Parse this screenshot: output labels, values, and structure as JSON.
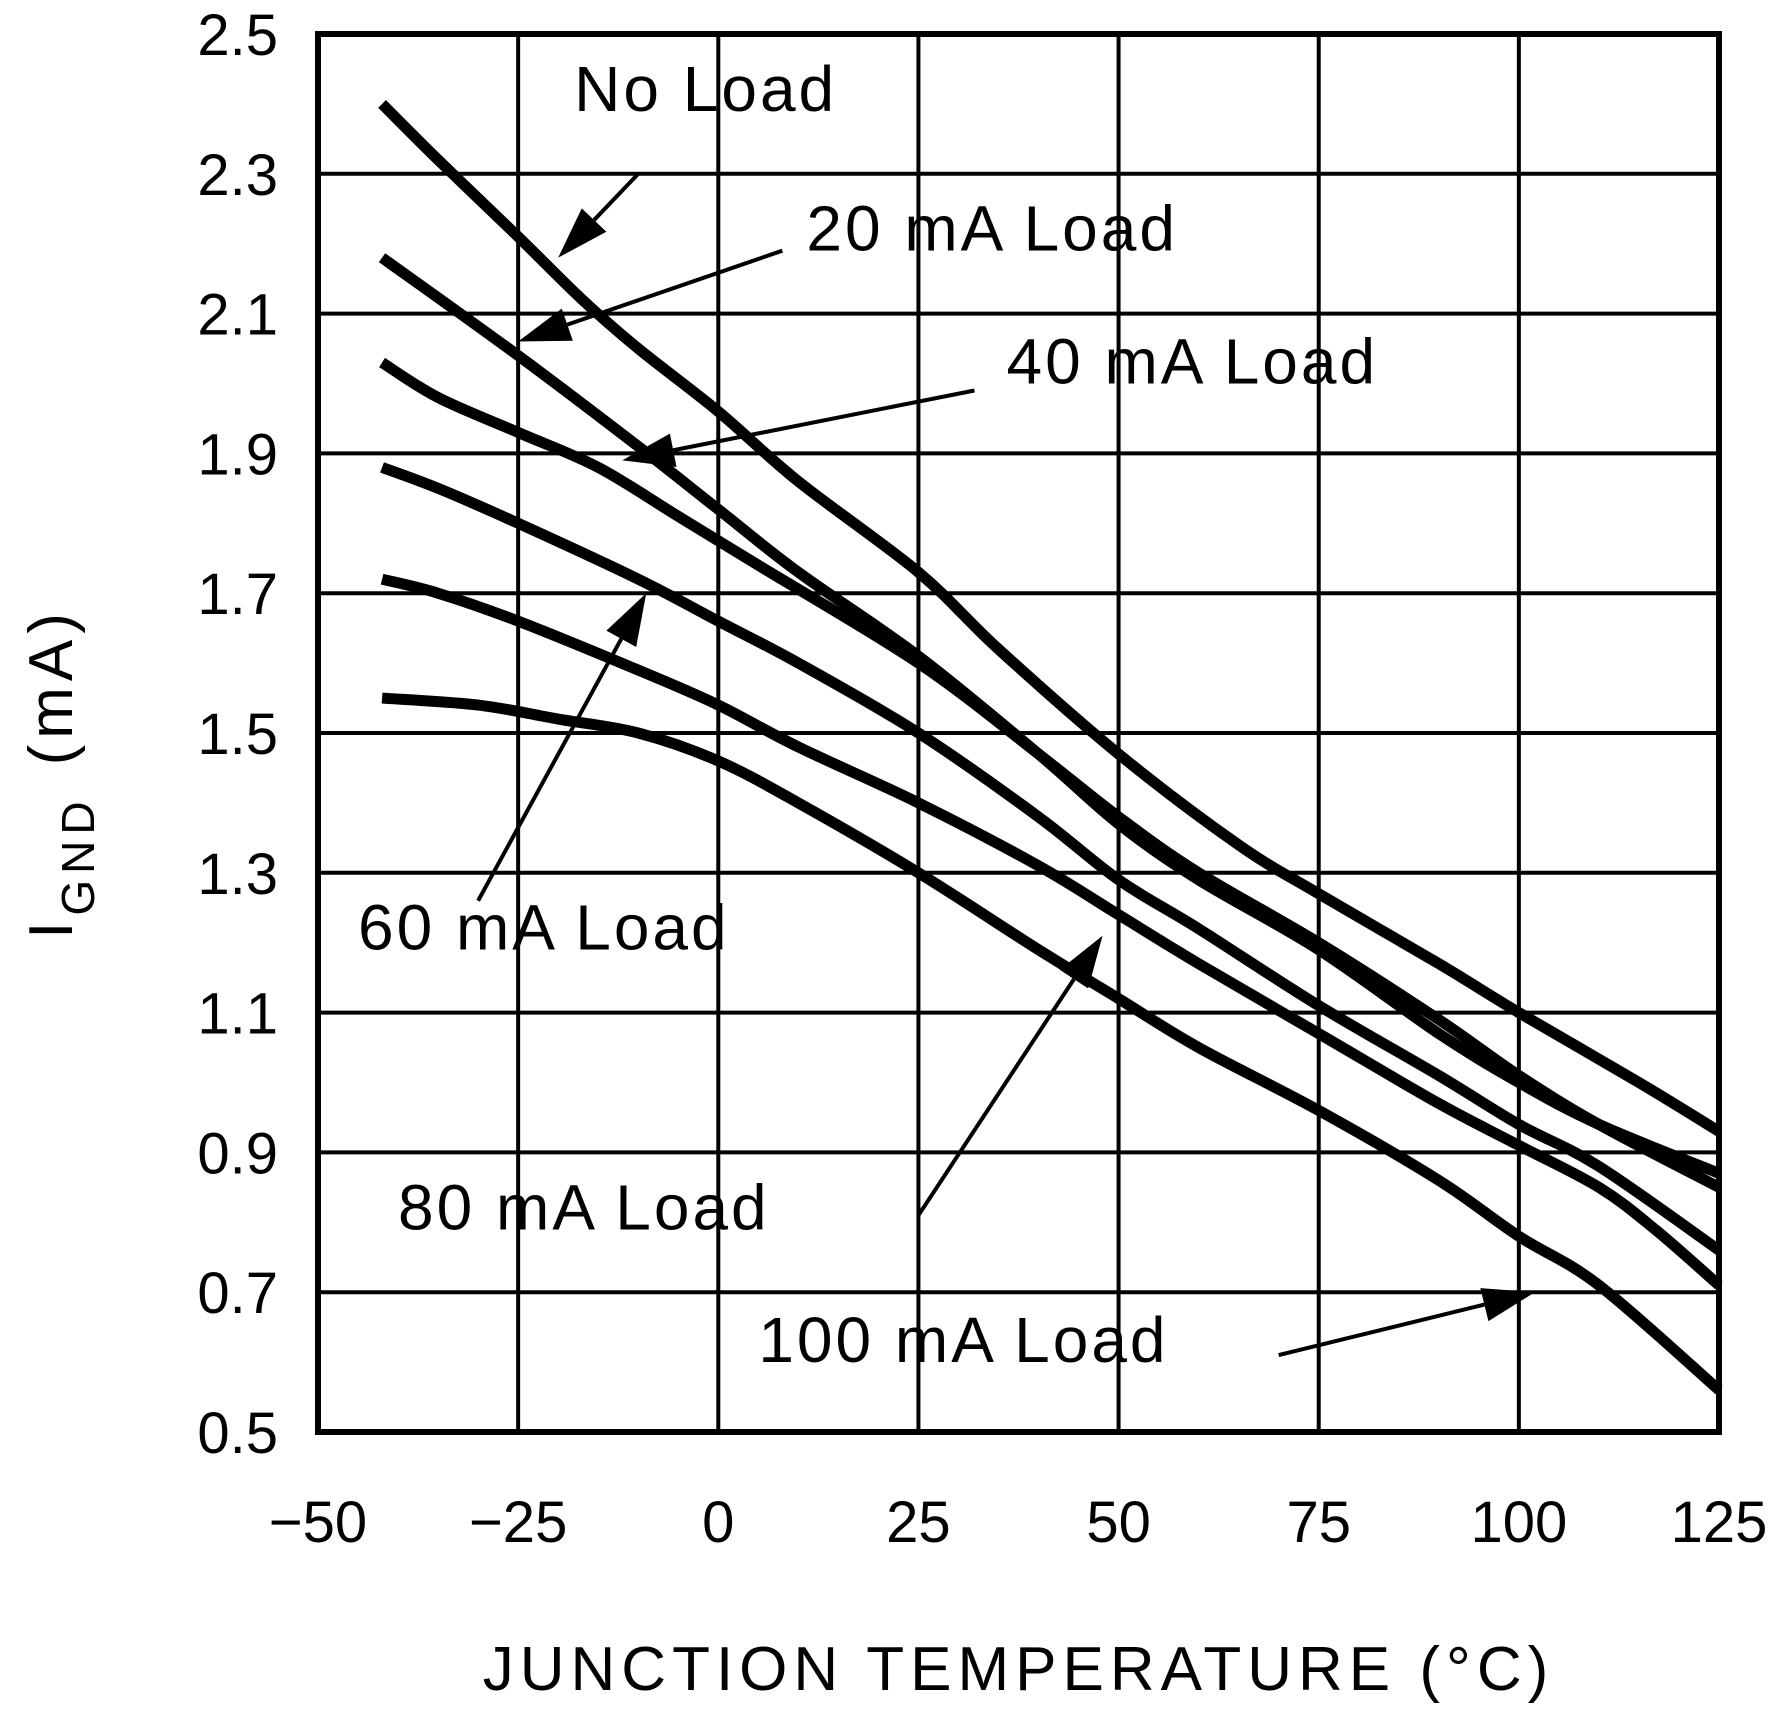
{
  "chart_data": {
    "type": "line",
    "title": "",
    "xlabel": "JUNCTION TEMPERATURE (°C)",
    "ylabel_main": "I",
    "ylabel_sub": "GND",
    "ylabel_unit": "(mA)",
    "xlim": [
      -50,
      125
    ],
    "ylim": [
      0.5,
      2.5
    ],
    "xticks": [
      -50,
      -25,
      0,
      25,
      50,
      75,
      100,
      125
    ],
    "xtick_labels": [
      "−50",
      "−25",
      "0",
      "25",
      "50",
      "75",
      "100",
      "125"
    ],
    "yticks": [
      0.5,
      0.7,
      0.9,
      1.1,
      1.3,
      1.5,
      1.7,
      1.9,
      2.1,
      2.3,
      2.5
    ],
    "ytick_labels": [
      "0.5",
      "0.7",
      "0.9",
      "1.1",
      "1.3",
      "1.5",
      "1.7",
      "1.9",
      "2.1",
      "2.3",
      "2.5"
    ],
    "grid": true,
    "line_color": "#000000",
    "series": [
      {
        "name": "No Load",
        "x": [
          -42,
          -35,
          -25,
          -17,
          -10,
          0,
          10,
          25,
          35,
          50,
          65,
          75,
          90,
          100,
          115,
          125
        ],
        "y": [
          2.4,
          2.32,
          2.21,
          2.12,
          2.05,
          1.96,
          1.86,
          1.73,
          1.62,
          1.47,
          1.34,
          1.27,
          1.17,
          1.1,
          1.0,
          0.93
        ]
      },
      {
        "name": "20 mA Load",
        "x": [
          -42,
          -25,
          -10,
          0,
          10,
          25,
          40,
          50,
          60,
          75,
          90,
          100,
          110,
          125
        ],
        "y": [
          2.18,
          2.04,
          1.91,
          1.82,
          1.73,
          1.61,
          1.47,
          1.37,
          1.29,
          1.19,
          1.07,
          1.0,
          0.94,
          0.87
        ]
      },
      {
        "name": "40 mA Load",
        "x": [
          -42,
          -35,
          -25,
          -15,
          -5,
          5,
          25,
          40,
          50,
          60,
          75,
          90,
          100,
          110,
          125
        ],
        "y": [
          2.03,
          1.98,
          1.93,
          1.88,
          1.81,
          1.74,
          1.6,
          1.47,
          1.38,
          1.3,
          1.2,
          1.09,
          1.01,
          0.94,
          0.85
        ]
      },
      {
        "name": "60 mA Load",
        "x": [
          -42,
          -35,
          -25,
          -10,
          0,
          10,
          25,
          40,
          50,
          60,
          75,
          90,
          100,
          110,
          125
        ],
        "y": [
          1.88,
          1.85,
          1.8,
          1.72,
          1.66,
          1.6,
          1.5,
          1.38,
          1.29,
          1.22,
          1.11,
          1.01,
          0.94,
          0.88,
          0.76
        ]
      },
      {
        "name": "80 mA Load",
        "x": [
          -42,
          -35,
          -25,
          -10,
          0,
          10,
          25,
          40,
          50,
          60,
          75,
          90,
          100,
          110,
          117,
          125
        ],
        "y": [
          1.72,
          1.7,
          1.66,
          1.59,
          1.54,
          1.48,
          1.4,
          1.31,
          1.24,
          1.17,
          1.07,
          0.97,
          0.91,
          0.85,
          0.79,
          0.71
        ]
      },
      {
        "name": "100 mA Load",
        "x": [
          -42,
          -30,
          -20,
          -10,
          0,
          10,
          25,
          40,
          50,
          60,
          75,
          90,
          100,
          110,
          125
        ],
        "y": [
          1.55,
          1.54,
          1.52,
          1.5,
          1.46,
          1.4,
          1.3,
          1.19,
          1.12,
          1.05,
          0.96,
          0.86,
          0.78,
          0.71,
          0.56
        ]
      }
    ],
    "annotations": [
      {
        "text": "No Load",
        "series": 0,
        "text_x": -18,
        "text_y": 2.39,
        "arrow_from": [
          -10,
          2.3
        ],
        "arrow_to": [
          -20,
          2.18
        ]
      },
      {
        "text": "20 mA Load",
        "series": 1,
        "text_x": 11,
        "text_y": 2.19,
        "arrow_from": [
          8,
          2.19
        ],
        "arrow_to": [
          -25,
          2.06
        ]
      },
      {
        "text": "40 mA Load",
        "series": 2,
        "text_x": 36,
        "text_y": 2.0,
        "arrow_from": [
          32,
          1.99
        ],
        "arrow_to": [
          -12,
          1.89
        ]
      },
      {
        "text": "60 mA Load",
        "series": 3,
        "text_x": -45,
        "text_y": 1.19,
        "arrow_from": [
          -30,
          1.26
        ],
        "arrow_to": [
          -9,
          1.7
        ]
      },
      {
        "text": "80 mA Load",
        "series": 4,
        "text_x": -40,
        "text_y": 0.79,
        "arrow_from": [
          25,
          0.81
        ],
        "arrow_to": [
          48,
          1.21
        ]
      },
      {
        "text": "100 mA Load",
        "series": 5,
        "text_x": 5,
        "text_y": 0.6,
        "arrow_from": [
          70,
          0.61
        ],
        "arrow_to": [
          102,
          0.7
        ]
      }
    ]
  }
}
